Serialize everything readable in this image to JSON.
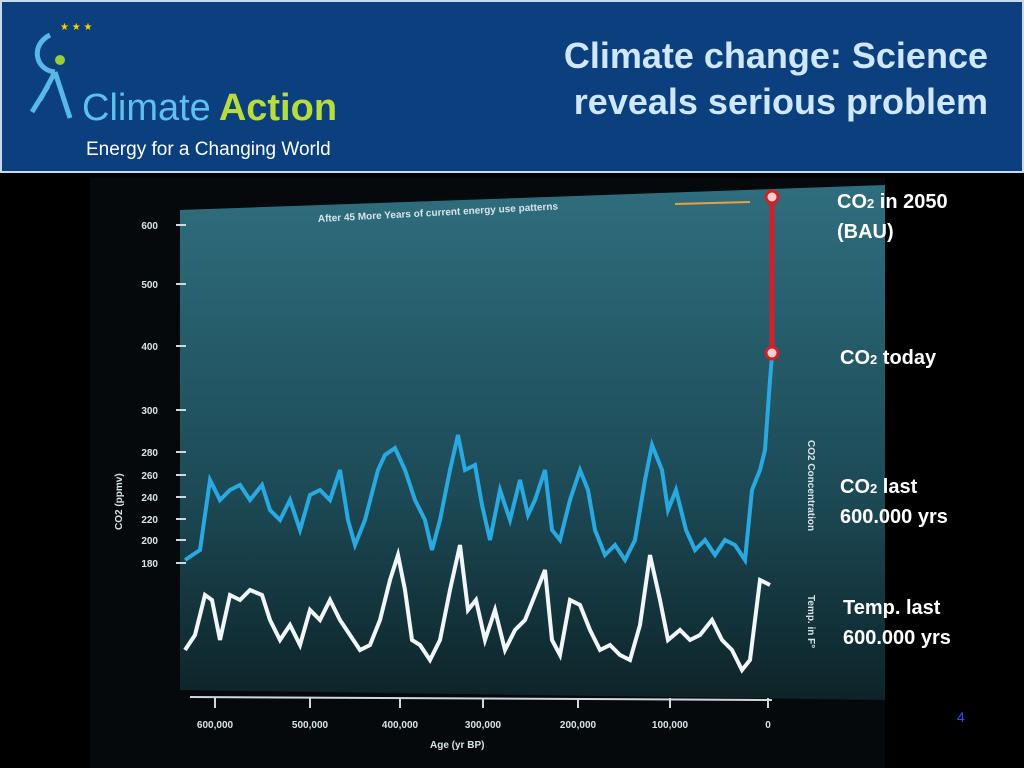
{
  "header": {
    "title_line1": "Climate change: Science",
    "title_line2": "reveals serious problem",
    "logo": {
      "word1": "Climate",
      "word2": "Action",
      "tagline": "Energy for a Changing World"
    }
  },
  "photo": {
    "annotation": "After 45 More Years of current energy use patterns",
    "y_axis_label": "CO2 (ppmv)",
    "right_axis_label1": "CO2 Concentration",
    "right_axis_label2": "Temp. in F°",
    "x_axis_label": "Age (yr BP)",
    "yticks": [
      "600",
      "500",
      "400",
      "300",
      "280",
      "260",
      "240",
      "220",
      "200",
      "180"
    ],
    "xticks": [
      "600,000",
      "500,000",
      "400,000",
      "300,000",
      "200,000",
      "100,000",
      "0"
    ]
  },
  "labels": [
    {
      "lead": "CO",
      "sub": "2",
      "rest": " in 2050",
      "line2": "(BAU)"
    },
    {
      "lead": "CO",
      "sub": "2",
      "rest": " today"
    },
    {
      "lead": "CO",
      "sub": "2",
      "rest": " last",
      "line2": "600.000 yrs"
    },
    {
      "lead": "Temp. last",
      "line2": "600.000 yrs"
    }
  ],
  "page_number": "4"
}
